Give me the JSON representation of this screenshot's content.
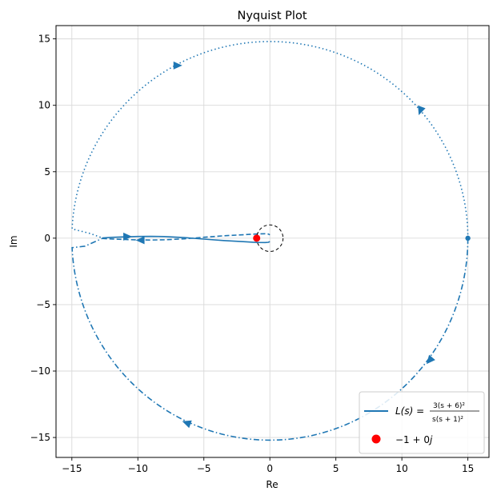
{
  "chart_data": {
    "type": "line",
    "title": "Nyquist Plot",
    "xlabel": "Re",
    "ylabel": "Im",
    "xlim": [
      -16.2,
      16.6
    ],
    "ylim": [
      -16.5,
      16.0
    ],
    "xticks": [
      -15,
      -10,
      -5,
      0,
      5,
      10,
      15
    ],
    "xtick_labels": [
      "−15",
      "−10",
      "−5",
      "0",
      "5",
      "10",
      "15"
    ],
    "yticks": [
      -15,
      -10,
      -5,
      0,
      5,
      10,
      15
    ],
    "ytick_labels": [
      "−15",
      "−10",
      "−5",
      "0",
      "5",
      "10",
      "15"
    ],
    "grid": true,
    "legend_position": "lower-right",
    "series": [
      {
        "name": "L(s) = 3(s+6)^2 / (s(s+1)^2)",
        "style": "solid",
        "color": "#1f77b4",
        "x": [
          15.0,
          15.0
        ],
        "y": [
          0.0,
          0.0
        ]
      },
      {
        "style": "solid",
        "color": "#1f77b4",
        "x": [
          0.0,
          -0.05,
          -0.12,
          -0.35,
          -1.0,
          -2.0,
          -3.5,
          -5.0,
          -6.5,
          -8.0,
          -9.0,
          -10.0,
          -11.0,
          -12.0,
          -12.7
        ],
        "y": [
          -0.25,
          -0.28,
          -0.31,
          -0.33,
          -0.32,
          -0.26,
          -0.18,
          -0.07,
          0.05,
          0.12,
          0.14,
          0.13,
          0.1,
          0.06,
          0.02
        ]
      },
      {
        "style": "dashed",
        "color": "#1f77b4",
        "x": [
          -12.7,
          -12.0,
          -11.0,
          -10.0,
          -9.0,
          -8.0,
          -6.5,
          -5.0,
          -3.5,
          -2.0,
          -1.0,
          -0.35,
          -0.12,
          -0.05,
          0.0
        ],
        "y": [
          -0.02,
          -0.06,
          -0.1,
          -0.13,
          -0.14,
          -0.12,
          -0.05,
          0.07,
          0.18,
          0.26,
          0.32,
          0.33,
          0.31,
          0.28,
          0.25
        ]
      }
    ],
    "reference_circle": {
      "center": [
        0,
        0
      ],
      "radius": 1,
      "style": "dashed",
      "color": "#000000"
    },
    "points": [
      {
        "name": "−1 + 0j",
        "x": -1,
        "y": 0,
        "color": "#ff0000"
      },
      {
        "x": 15,
        "y": 0,
        "color": "#1f77b4"
      }
    ],
    "direction_arrows": [
      {
        "x": -7.0,
        "y": 13.0,
        "pointing": "right"
      },
      {
        "x": 11.4,
        "y": 9.6,
        "pointing": "down"
      },
      {
        "x": 12.1,
        "y": -9.2,
        "pointing": "down-left"
      },
      {
        "x": -6.3,
        "y": -13.9,
        "pointing": "up-left"
      },
      {
        "x": -10.8,
        "y": 0.12,
        "pointing": "right"
      },
      {
        "x": -9.8,
        "y": -0.15,
        "pointing": "left"
      }
    ],
    "legend": [
      {
        "label": "L(s) = 3(s+6)² / (s(s+1)²)",
        "marker": "line",
        "color": "#1f77b4"
      },
      {
        "label": "−1 + 0j",
        "marker": "dot",
        "color": "#ff0000"
      }
    ]
  },
  "legend_text": {
    "main_prefix": "L(s) =",
    "numerator": "3(s + 6)²",
    "denominator": "s(s + 1)²",
    "point_label_a": "−1 + 0",
    "point_label_b": "j"
  }
}
